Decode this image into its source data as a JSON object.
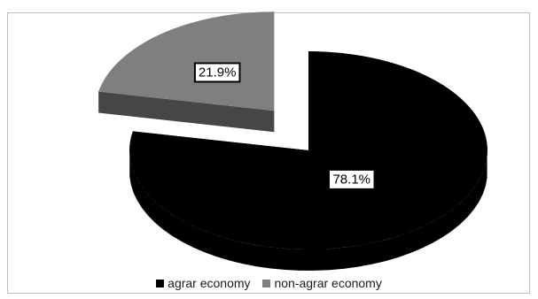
{
  "chart_data": {
    "type": "pie",
    "style": "3d-exploded",
    "categories": [
      "agrar economy",
      "non-agrar economy"
    ],
    "values": [
      78.1,
      21.9
    ],
    "data_labels": [
      "78.1%",
      "21.9%"
    ],
    "colors": [
      "#000000",
      "#7f7f7f"
    ],
    "title": "",
    "legend": {
      "placement": "bottom",
      "items": [
        {
          "label": "agrar economy",
          "color": "#000000"
        },
        {
          "label": "non-agrar economy",
          "color": "#7f7f7f"
        }
      ]
    }
  }
}
